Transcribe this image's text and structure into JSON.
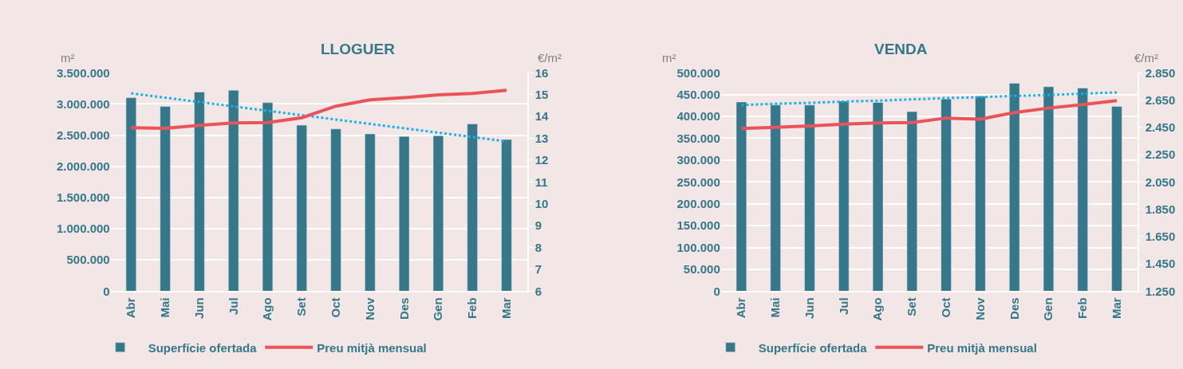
{
  "chart_data": [
    {
      "type": "bar",
      "title": "LLOGUER",
      "ylabel": "m²",
      "y2label": "€/m²",
      "categories": [
        "Abr",
        "Mai",
        "Jun",
        "Jul",
        "Ago",
        "Set",
        "Oct",
        "Nov",
        "Des",
        "Gen",
        "Feb",
        "Mar"
      ],
      "series": [
        {
          "name": "Superfície ofertada",
          "color": "#367889",
          "values": [
            3100000,
            2960000,
            3190000,
            3220000,
            3020000,
            2660000,
            2600000,
            2520000,
            2480000,
            2490000,
            2680000,
            2430000
          ]
        },
        {
          "name": "Preu mitjà mensual",
          "type": "line",
          "axis": "y2",
          "color": "#e8545a",
          "values": [
            13.48,
            13.46,
            13.59,
            13.7,
            13.72,
            13.94,
            14.47,
            14.76,
            14.86,
            14.99,
            15.05,
            15.2
          ]
        },
        {
          "type": "line",
          "line_style": "dotted",
          "color": "#1ab0ec",
          "values": [
            3170000,
            3100000,
            3030000,
            2960000,
            2890000,
            2820000,
            2750000,
            2680000,
            2610000,
            2540000,
            2470000,
            2400000
          ]
        }
      ],
      "ylim": [
        0,
        3500000
      ],
      "yticks": [
        0,
        {
          "value": 500000,
          "label": "500.000"
        },
        {
          "value": 1000000,
          "label": "1.000.000"
        },
        {
          "value": 1500000,
          "label": "1.500.000"
        },
        {
          "value": 2000000,
          "label": "2.000.000"
        },
        {
          "value": 2500000,
          "label": "2.500.000"
        },
        {
          "value": 3000000,
          "label": "3.000.000"
        },
        {
          "value": 3500000,
          "label": "3.500.000"
        }
      ],
      "y2lim": [
        6,
        16
      ],
      "y2ticks": [
        6,
        7,
        8,
        9,
        10,
        11,
        12,
        13,
        14,
        15,
        16
      ],
      "grid": "y",
      "legend": "bottom"
    },
    {
      "type": "bar",
      "title": "VENDA",
      "ylabel": "m²",
      "y2label": "€/m²",
      "categories": [
        "Abr",
        "Mai",
        "Jun",
        "Jul",
        "Ago",
        "Set",
        "Oct",
        "Nov",
        "Des",
        "Gen",
        "Feb",
        "Mar"
      ],
      "series": [
        {
          "name": "Superfície ofertada",
          "color": "#367889",
          "values": [
            433000,
            426000,
            426000,
            435000,
            432000,
            411000,
            440000,
            446000,
            476000,
            468000,
            465000,
            423000
          ]
        },
        {
          "name": "Preu mitjà mensual",
          "type": "line",
          "axis": "y2",
          "color": "#e8545a",
          "values": [
            2442,
            2450,
            2460,
            2473,
            2483,
            2485,
            2518,
            2510,
            2558,
            2591,
            2616,
            2646
          ]
        },
        {
          "type": "line",
          "line_style": "dotted",
          "color": "#1ab0ec",
          "values": [
            426000,
            429000,
            431000,
            434000,
            436000,
            439000,
            442000,
            444000,
            447000,
            449000,
            452000,
            455000
          ]
        }
      ],
      "ylim": [
        0,
        500000
      ],
      "yticks": [
        0,
        {
          "value": 50000,
          "label": "50.000"
        },
        {
          "value": 100000,
          "label": "100.000"
        },
        {
          "value": 150000,
          "label": "150.000"
        },
        {
          "value": 200000,
          "label": "200.000"
        },
        {
          "value": 250000,
          "label": "250.000"
        },
        {
          "value": 300000,
          "label": "300.000"
        },
        {
          "value": 350000,
          "label": "350.000"
        },
        {
          "value": 400000,
          "label": "400.000"
        },
        {
          "value": 450000,
          "label": "450.000"
        },
        {
          "value": 500000,
          "label": "500.000"
        }
      ],
      "y2lim": [
        1250,
        2850
      ],
      "y2ticks": [
        {
          "value": 1250,
          "label": "1.250"
        },
        {
          "value": 1450,
          "label": "1.450"
        },
        {
          "value": 1650,
          "label": "1.650"
        },
        {
          "value": 1850,
          "label": "1.850"
        },
        {
          "value": 2050,
          "label": "2.050"
        },
        {
          "value": 2250,
          "label": "2.250"
        },
        {
          "value": 2450,
          "label": "2.450"
        },
        {
          "value": 2650,
          "label": "2.650"
        },
        {
          "value": 2850,
          "label": "2.850"
        }
      ],
      "grid": "y",
      "legend": "bottom"
    }
  ]
}
